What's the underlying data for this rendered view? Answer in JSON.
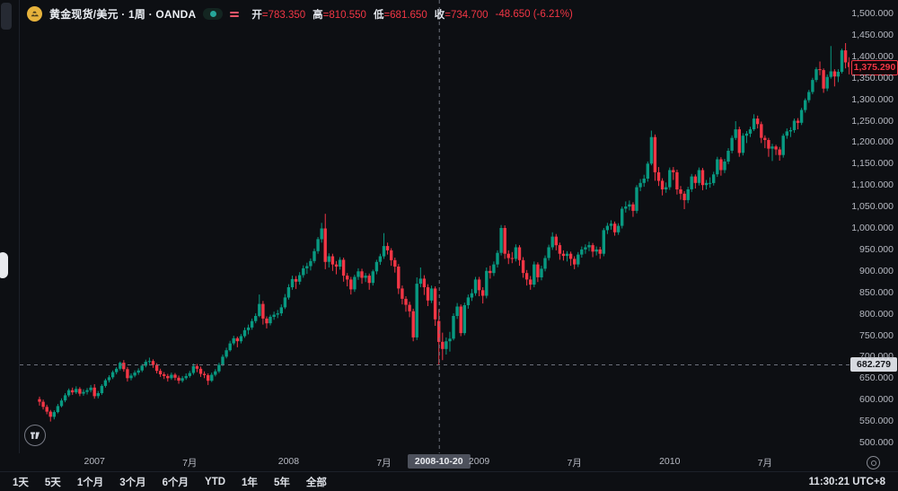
{
  "header": {
    "title": "黄金现货/美元 · 1周 · OANDA",
    "ohlc": {
      "open_label": "开",
      "open": "783.350",
      "high_label": "高",
      "high": "810.550",
      "low_label": "低",
      "low": "681.650",
      "close_label": "收",
      "close": "734.700",
      "change": "-48.650 (-6.21%)"
    }
  },
  "colors": {
    "background": "#0d0f13",
    "up": "#089981",
    "down": "#f23645",
    "crosshair": "#6e727d",
    "axis_text": "#b7bac3"
  },
  "price_axis": {
    "min": 500,
    "max": 1500,
    "step": 50,
    "last_price": 1375.29,
    "last_price_label": "1,375.290"
  },
  "time_axis": {
    "ticks": [
      {
        "label": "2007",
        "week": 15
      },
      {
        "label": "7月",
        "week": 41
      },
      {
        "label": "2008",
        "week": 68
      },
      {
        "label": "7月",
        "week": 94
      },
      {
        "label": "2009",
        "week": 120
      },
      {
        "label": "7月",
        "week": 146
      },
      {
        "label": "2010",
        "week": 172
      },
      {
        "label": "7月",
        "week": 198
      }
    ]
  },
  "crosshair": {
    "index": 109,
    "price": 682.279,
    "price_label": "682.279",
    "date_label": "2008-10-20"
  },
  "toolbar": {
    "ranges": [
      "1天",
      "5天",
      "1个月",
      "3个月",
      "6个月",
      "YTD",
      "1年",
      "5年",
      "全部"
    ],
    "clock": "11:30:21 UTC+8"
  },
  "chart_data": {
    "type": "candlestick",
    "title": "黄金现货/美元 · 1周 · OANDA",
    "interval": "weekly",
    "ylim": [
      500,
      1500
    ],
    "legend_position": "none",
    "grid": false,
    "crosshair_candle": {
      "date": "2008-10-20",
      "open": 783.35,
      "high": 810.55,
      "low": 681.65,
      "close": 734.7
    },
    "ohlc": [
      [
        601,
        607,
        586,
        595
      ],
      [
        595,
        600,
        577,
        583
      ],
      [
        583,
        588,
        566,
        572
      ],
      [
        572,
        576,
        549,
        560
      ],
      [
        560,
        575,
        554,
        571
      ],
      [
        571,
        590,
        568,
        585
      ],
      [
        585,
        603,
        582,
        598
      ],
      [
        598,
        615,
        594,
        610
      ],
      [
        610,
        626,
        606,
        622
      ],
      [
        622,
        628,
        611,
        617
      ],
      [
        617,
        631,
        613,
        625
      ],
      [
        625,
        629,
        608,
        614
      ],
      [
        614,
        624,
        609,
        618
      ],
      [
        618,
        627,
        612,
        622
      ],
      [
        622,
        634,
        617,
        628
      ],
      [
        628,
        636,
        602,
        608
      ],
      [
        608,
        620,
        603,
        615
      ],
      [
        615,
        636,
        611,
        632
      ],
      [
        632,
        649,
        628,
        645
      ],
      [
        645,
        657,
        640,
        652
      ],
      [
        652,
        668,
        648,
        664
      ],
      [
        664,
        676,
        659,
        672
      ],
      [
        672,
        689,
        668,
        686
      ],
      [
        686,
        692,
        665,
        671
      ],
      [
        671,
        676,
        642,
        650
      ],
      [
        650,
        661,
        645,
        656
      ],
      [
        656,
        668,
        652,
        663
      ],
      [
        663,
        673,
        658,
        668
      ],
      [
        668,
        683,
        664,
        679
      ],
      [
        679,
        693,
        675,
        688
      ],
      [
        688,
        698,
        683,
        690
      ],
      [
        690,
        694,
        674,
        681
      ],
      [
        681,
        685,
        661,
        667
      ],
      [
        667,
        672,
        653,
        659
      ],
      [
        659,
        664,
        648,
        655
      ],
      [
        655,
        660,
        642,
        650
      ],
      [
        650,
        663,
        646,
        658
      ],
      [
        658,
        662,
        645,
        651
      ],
      [
        651,
        656,
        637,
        644
      ],
      [
        644,
        655,
        640,
        650
      ],
      [
        650,
        661,
        646,
        655
      ],
      [
        655,
        667,
        651,
        662
      ],
      [
        662,
        684,
        658,
        678
      ],
      [
        678,
        683,
        664,
        672
      ],
      [
        672,
        677,
        653,
        660
      ],
      [
        660,
        666,
        650,
        657
      ],
      [
        657,
        661,
        634,
        644
      ],
      [
        644,
        663,
        641,
        658
      ],
      [
        658,
        671,
        654,
        666
      ],
      [
        666,
        686,
        662,
        681
      ],
      [
        681,
        705,
        678,
        700
      ],
      [
        700,
        721,
        696,
        715
      ],
      [
        715,
        737,
        712,
        731
      ],
      [
        731,
        749,
        727,
        743
      ],
      [
        743,
        747,
        722,
        736
      ],
      [
        736,
        753,
        731,
        748
      ],
      [
        748,
        768,
        744,
        762
      ],
      [
        762,
        775,
        752,
        768
      ],
      [
        768,
        789,
        763,
        783
      ],
      [
        783,
        801,
        778,
        795
      ],
      [
        795,
        845,
        792,
        823
      ],
      [
        823,
        830,
        775,
        789
      ],
      [
        789,
        794,
        766,
        778
      ],
      [
        778,
        798,
        773,
        793
      ],
      [
        793,
        805,
        786,
        798
      ],
      [
        798,
        809,
        790,
        801
      ],
      [
        801,
        822,
        795,
        815
      ],
      [
        815,
        846,
        811,
        838
      ],
      [
        838,
        869,
        833,
        862
      ],
      [
        862,
        889,
        856,
        881
      ],
      [
        881,
        888,
        858,
        875
      ],
      [
        875,
        897,
        868,
        890
      ],
      [
        890,
        913,
        884,
        906
      ],
      [
        906,
        919,
        893,
        911
      ],
      [
        911,
        929,
        901,
        923
      ],
      [
        923,
        952,
        918,
        946
      ],
      [
        946,
        979,
        940,
        974
      ],
      [
        974,
        1012,
        966,
        999
      ],
      [
        999,
        1033,
        904,
        921
      ],
      [
        921,
        941,
        908,
        934
      ],
      [
        934,
        940,
        900,
        915
      ],
      [
        915,
        923,
        892,
        910
      ],
      [
        910,
        932,
        903,
        926
      ],
      [
        926,
        931,
        875,
        889
      ],
      [
        889,
        895,
        864,
        880
      ],
      [
        880,
        886,
        845,
        857
      ],
      [
        857,
        891,
        851,
        886
      ],
      [
        886,
        906,
        879,
        899
      ],
      [
        899,
        905,
        870,
        884
      ],
      [
        884,
        895,
        874,
        889
      ],
      [
        889,
        894,
        856,
        872
      ],
      [
        872,
        903,
        866,
        899
      ],
      [
        899,
        926,
        892,
        921
      ],
      [
        921,
        940,
        914,
        934
      ],
      [
        934,
        988,
        928,
        958
      ],
      [
        958,
        966,
        938,
        948
      ],
      [
        948,
        953,
        912,
        925
      ],
      [
        925,
        931,
        896,
        910
      ],
      [
        910,
        916,
        846,
        859
      ],
      [
        859,
        866,
        822,
        835
      ],
      [
        835,
        841,
        805,
        821
      ],
      [
        821,
        828,
        792,
        806
      ],
      [
        806,
        812,
        736,
        745
      ],
      [
        745,
        885,
        739,
        870
      ],
      [
        870,
        908,
        862,
        882
      ],
      [
        882,
        890,
        844,
        862
      ],
      [
        862,
        869,
        818,
        831
      ],
      [
        831,
        866,
        825,
        859
      ],
      [
        859,
        864,
        772,
        787
      ],
      [
        783.35,
        810.55,
        681.65,
        734.7
      ],
      [
        734.7,
        756,
        692,
        718
      ],
      [
        718,
        745,
        705,
        736
      ],
      [
        736,
        758,
        712,
        742
      ],
      [
        742,
        801,
        738,
        795
      ],
      [
        795,
        825,
        788,
        817
      ],
      [
        817,
        822,
        748,
        755
      ],
      [
        755,
        826,
        750,
        820
      ],
      [
        820,
        845,
        812,
        838
      ],
      [
        838,
        858,
        830,
        848
      ],
      [
        848,
        886,
        842,
        880
      ],
      [
        880,
        886,
        841,
        855
      ],
      [
        855,
        862,
        824,
        842
      ],
      [
        842,
        908,
        836,
        900
      ],
      [
        900,
        912,
        882,
        895
      ],
      [
        895,
        922,
        888,
        915
      ],
      [
        915,
        948,
        908,
        942
      ],
      [
        942,
        1007,
        936,
        1000
      ],
      [
        1000,
        1006,
        928,
        940
      ],
      [
        940,
        948,
        916,
        930
      ],
      [
        930,
        944,
        918,
        928
      ],
      [
        928,
        962,
        922,
        955
      ],
      [
        955,
        960,
        912,
        925
      ],
      [
        925,
        932,
        884,
        895
      ],
      [
        895,
        902,
        866,
        880
      ],
      [
        880,
        888,
        856,
        868
      ],
      [
        868,
        922,
        862,
        915
      ],
      [
        915,
        920,
        874,
        885
      ],
      [
        885,
        912,
        878,
        905
      ],
      [
        905,
        936,
        899,
        930
      ],
      [
        930,
        961,
        924,
        955
      ],
      [
        955,
        990,
        949,
        980
      ],
      [
        980,
        986,
        948,
        960
      ],
      [
        960,
        966,
        926,
        940
      ],
      [
        940,
        948,
        924,
        935
      ],
      [
        935,
        946,
        922,
        940
      ],
      [
        940,
        945,
        912,
        928
      ],
      [
        928,
        934,
        904,
        915
      ],
      [
        915,
        944,
        909,
        938
      ],
      [
        938,
        957,
        931,
        950
      ],
      [
        950,
        962,
        940,
        955
      ],
      [
        955,
        968,
        946,
        960
      ],
      [
        960,
        965,
        932,
        945
      ],
      [
        945,
        957,
        936,
        950
      ],
      [
        950,
        956,
        928,
        940
      ],
      [
        940,
        1000,
        934,
        995
      ],
      [
        995,
        1012,
        986,
        1005
      ],
      [
        1005,
        1018,
        996,
        1010
      ],
      [
        1010,
        1015,
        982,
        990
      ],
      [
        990,
        1011,
        984,
        1005
      ],
      [
        1005,
        1050,
        999,
        1045
      ],
      [
        1045,
        1062,
        1036,
        1050
      ],
      [
        1050,
        1064,
        1041,
        1055
      ],
      [
        1055,
        1060,
        1026,
        1040
      ],
      [
        1040,
        1100,
        1034,
        1095
      ],
      [
        1095,
        1114,
        1086,
        1105
      ],
      [
        1105,
        1124,
        1096,
        1115
      ],
      [
        1115,
        1155,
        1108,
        1150
      ],
      [
        1150,
        1227,
        1146,
        1212
      ],
      [
        1212,
        1218,
        1110,
        1130
      ],
      [
        1130,
        1142,
        1098,
        1110
      ],
      [
        1110,
        1116,
        1076,
        1090
      ],
      [
        1090,
        1106,
        1082,
        1095
      ],
      [
        1095,
        1141,
        1089,
        1135
      ],
      [
        1135,
        1142,
        1112,
        1130
      ],
      [
        1130,
        1136,
        1078,
        1090
      ],
      [
        1090,
        1098,
        1066,
        1080
      ],
      [
        1080,
        1086,
        1044,
        1065
      ],
      [
        1065,
        1096,
        1058,
        1090
      ],
      [
        1090,
        1126,
        1084,
        1120
      ],
      [
        1120,
        1125,
        1092,
        1105
      ],
      [
        1105,
        1141,
        1099,
        1135
      ],
      [
        1135,
        1140,
        1088,
        1100
      ],
      [
        1100,
        1112,
        1090,
        1105
      ],
      [
        1105,
        1118,
        1094,
        1105
      ],
      [
        1105,
        1131,
        1099,
        1125
      ],
      [
        1125,
        1166,
        1119,
        1160
      ],
      [
        1160,
        1165,
        1122,
        1135
      ],
      [
        1135,
        1161,
        1128,
        1155
      ],
      [
        1155,
        1186,
        1149,
        1180
      ],
      [
        1180,
        1216,
        1174,
        1210
      ],
      [
        1210,
        1249,
        1205,
        1230
      ],
      [
        1230,
        1236,
        1166,
        1175
      ],
      [
        1175,
        1221,
        1169,
        1215
      ],
      [
        1215,
        1226,
        1198,
        1220
      ],
      [
        1220,
        1236,
        1212,
        1230
      ],
      [
        1230,
        1265,
        1226,
        1255
      ],
      [
        1255,
        1262,
        1232,
        1242
      ],
      [
        1242,
        1248,
        1198,
        1210
      ],
      [
        1210,
        1216,
        1186,
        1205
      ],
      [
        1205,
        1210,
        1166,
        1185
      ],
      [
        1185,
        1196,
        1156,
        1190
      ],
      [
        1190,
        1194,
        1170,
        1183
      ],
      [
        1183,
        1189,
        1157,
        1170
      ],
      [
        1170,
        1220,
        1164,
        1215
      ],
      [
        1215,
        1232,
        1208,
        1225
      ],
      [
        1225,
        1235,
        1212,
        1228
      ],
      [
        1228,
        1255,
        1222,
        1250
      ],
      [
        1250,
        1256,
        1230,
        1245
      ],
      [
        1245,
        1280,
        1240,
        1275
      ],
      [
        1275,
        1302,
        1269,
        1298
      ],
      [
        1298,
        1322,
        1292,
        1317
      ],
      [
        1317,
        1350,
        1312,
        1345
      ],
      [
        1345,
        1375,
        1340,
        1370
      ],
      [
        1370,
        1388,
        1356,
        1368
      ],
      [
        1368,
        1372,
        1315,
        1325
      ],
      [
        1325,
        1358,
        1319,
        1352
      ],
      [
        1352,
        1424,
        1348,
        1365
      ],
      [
        1365,
        1370,
        1330,
        1353
      ],
      [
        1353,
        1370,
        1340,
        1364
      ],
      [
        1364,
        1418,
        1360,
        1414
      ],
      [
        1414,
        1431,
        1372,
        1386
      ],
      [
        1386,
        1398,
        1358,
        1375.29
      ]
    ]
  }
}
